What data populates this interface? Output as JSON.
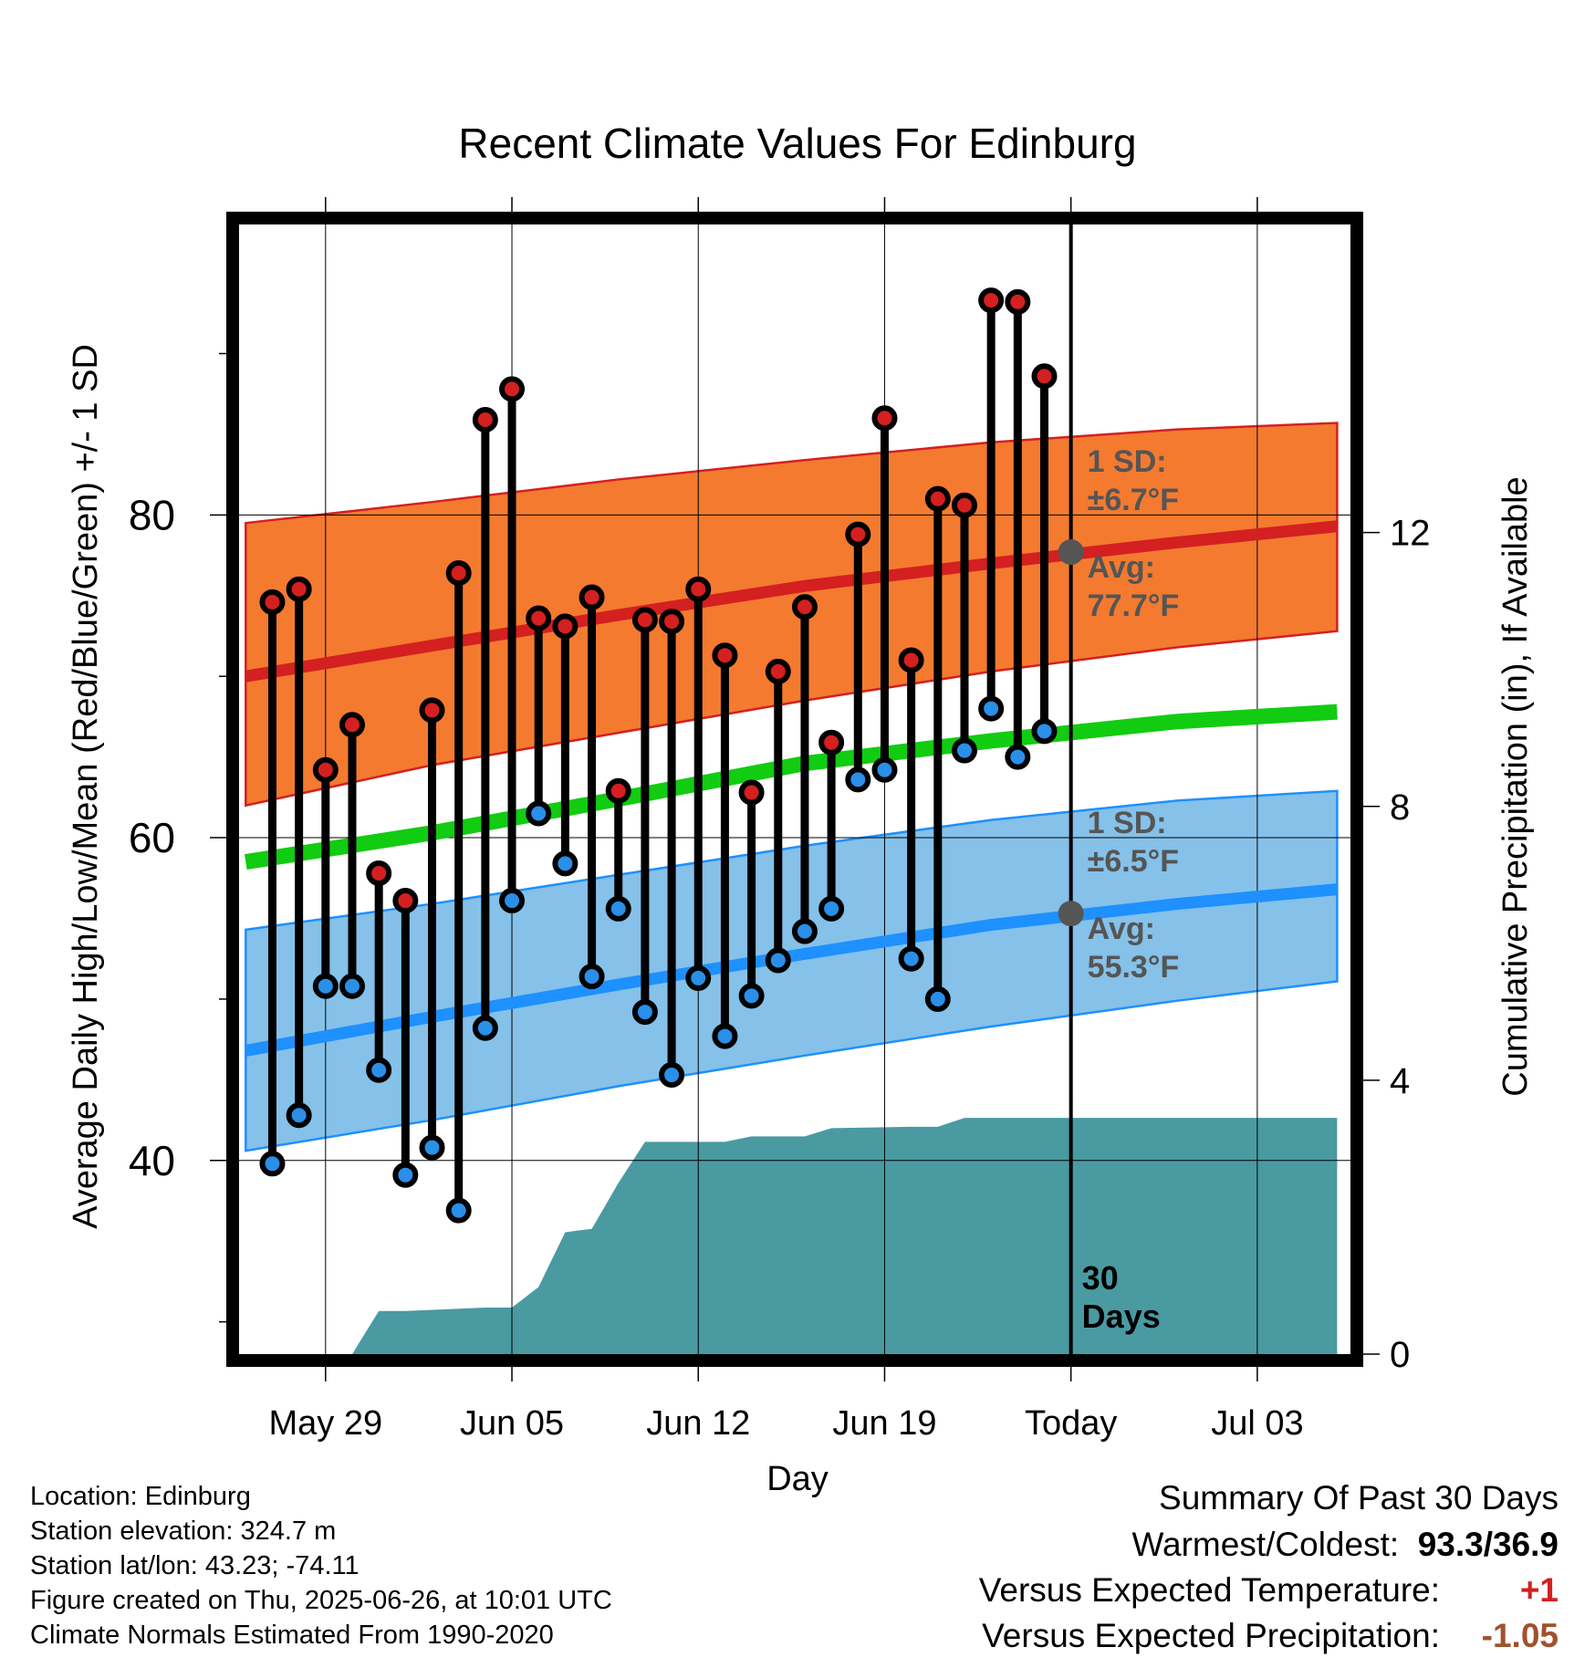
{
  "chart_data": {
    "type": "line",
    "title": "Recent Climate Values For Edinburg",
    "xlabel": "Day",
    "ylabel_left": "Average Daily High/Low/Mean (Red/Blue/Green) +/- 1 SD",
    "ylabel_right": "Cumulative Precipitation (in), If Available",
    "x_tick_labels": [
      "May 29",
      "Jun 05",
      "Jun 12",
      "Jun 19",
      "Today",
      "Jul 03"
    ],
    "x_tick_dates": [
      "2025-05-29",
      "2025-06-05",
      "2025-06-12",
      "2025-06-19",
      "2025-06-26",
      "2025-07-03"
    ],
    "xlim": [
      "2025-05-25T18:00",
      "2025-07-06T12:00"
    ],
    "ylim_left": [
      28,
      98
    ],
    "yticks_left": [
      40,
      60,
      80
    ],
    "ylim_right": [
      0,
      16.5
    ],
    "yticks_right": [
      0,
      4,
      8,
      12
    ],
    "grid": true,
    "today": "2025-06-26",
    "today_label": "30 Days",
    "colors": {
      "high_marker": "#d42020",
      "low_marker": "#2a8fe8",
      "high_band": "#f47a30",
      "high_mean_line": "#d42020",
      "low_band": "#85c1e9",
      "low_mean_line": "#1e90ff",
      "mean_line": "#11cc11",
      "precip": "#4a9aa2",
      "annotation": "#555555"
    },
    "daily_dates": [
      "2025-05-27",
      "2025-05-28",
      "2025-05-29",
      "2025-05-30",
      "2025-05-31",
      "2025-06-01",
      "2025-06-02",
      "2025-06-03",
      "2025-06-04",
      "2025-06-05",
      "2025-06-06",
      "2025-06-07",
      "2025-06-08",
      "2025-06-09",
      "2025-06-10",
      "2025-06-11",
      "2025-06-12",
      "2025-06-13",
      "2025-06-14",
      "2025-06-15",
      "2025-06-16",
      "2025-06-17",
      "2025-06-18",
      "2025-06-19",
      "2025-06-20",
      "2025-06-21",
      "2025-06-22",
      "2025-06-23",
      "2025-06-24",
      "2025-06-25"
    ],
    "series": [
      {
        "name": "High",
        "values": [
          74.6,
          75.4,
          64.2,
          67.0,
          57.8,
          56.1,
          67.9,
          76.4,
          85.9,
          87.8,
          73.6,
          73.1,
          74.9,
          62.9,
          73.5,
          73.4,
          75.4,
          71.3,
          62.8,
          70.3,
          74.3,
          65.9,
          78.8,
          86.0,
          71.0,
          81.0,
          80.6,
          93.3,
          93.2,
          88.6
        ]
      },
      {
        "name": "Low",
        "values": [
          39.8,
          42.8,
          50.8,
          50.8,
          45.6,
          39.1,
          40.8,
          36.9,
          48.2,
          56.1,
          61.5,
          58.4,
          51.4,
          55.6,
          49.2,
          45.3,
          51.3,
          47.7,
          50.2,
          52.4,
          54.2,
          55.6,
          63.6,
          64.2,
          52.5,
          50.0,
          65.4,
          68.0,
          65.0,
          66.6
        ]
      }
    ],
    "normals": {
      "dates": [
        "2025-05-26",
        "2025-06-02",
        "2025-06-09",
        "2025-06-16",
        "2025-06-23",
        "2025-06-30",
        "2025-07-06"
      ],
      "high_mean": [
        70.0,
        71.9,
        73.8,
        75.6,
        77.0,
        78.3,
        79.3
      ],
      "high_sd_upper": [
        79.5,
        80.8,
        82.2,
        83.4,
        84.5,
        85.3,
        85.7
      ],
      "high_sd_lower": [
        62.0,
        64.5,
        66.5,
        68.5,
        70.3,
        71.8,
        72.8
      ],
      "mean": [
        58.5,
        60.3,
        62.4,
        64.6,
        66.0,
        67.2,
        67.8
      ],
      "low_mean": [
        46.8,
        48.9,
        50.9,
        52.8,
        54.6,
        55.9,
        56.8
      ],
      "low_sd_upper": [
        54.3,
        55.9,
        57.7,
        59.5,
        61.1,
        62.3,
        62.9
      ],
      "low_sd_lower": [
        40.6,
        42.5,
        44.6,
        46.5,
        48.3,
        49.9,
        51.1
      ]
    },
    "precip_cumulative": {
      "dates": [
        "2025-05-25",
        "2025-05-30",
        "2025-05-31",
        "2025-06-01",
        "2025-06-04",
        "2025-06-05",
        "2025-06-06",
        "2025-06-07",
        "2025-06-08",
        "2025-06-09",
        "2025-06-10",
        "2025-06-11",
        "2025-06-12",
        "2025-06-13",
        "2025-06-14",
        "2025-06-15",
        "2025-06-16",
        "2025-06-17",
        "2025-06-20",
        "2025-06-21",
        "2025-06-22",
        "2025-06-23",
        "2025-07-06"
      ],
      "values": [
        0,
        0,
        0.63,
        0.63,
        0.68,
        0.68,
        0.98,
        1.78,
        1.83,
        2.5,
        3.1,
        3.1,
        3.1,
        3.1,
        3.18,
        3.18,
        3.18,
        3.3,
        3.32,
        3.32,
        3.45,
        3.45,
        3.45
      ]
    },
    "annotations": {
      "high_sd_text_1": "1 SD:",
      "high_sd_text_2": "±6.7°F",
      "high_avg_text_1": "Avg:",
      "high_avg_text_2": "77.7°F",
      "high_avg_value": 77.7,
      "low_sd_text_1": "1 SD:",
      "low_sd_text_2": "±6.5°F",
      "low_avg_text_1": "Avg:",
      "low_avg_text_2": "55.3°F",
      "low_avg_value": 55.3
    }
  },
  "info": {
    "location": "Location: Edinburg",
    "elevation": "Station elevation: 324.7 m",
    "latlon": "Station lat/lon: 43.23; -74.11",
    "created": "Figure created on Thu, 2025-06-26, at 10:01 UTC",
    "normals": "Climate Normals Estimated From 1990-2020"
  },
  "summary": {
    "title": "Summary Of Past 30 Days",
    "warm_cold_label": "Warmest/Coldest:",
    "warm_cold_value": "93.3/36.9",
    "temp_label": "Versus Expected Temperature:",
    "temp_value": "+1",
    "temp_color": "#d42020",
    "precip_label": "Versus Expected Precipitation:",
    "precip_value": "-1.05",
    "precip_color": "#a0522d"
  }
}
